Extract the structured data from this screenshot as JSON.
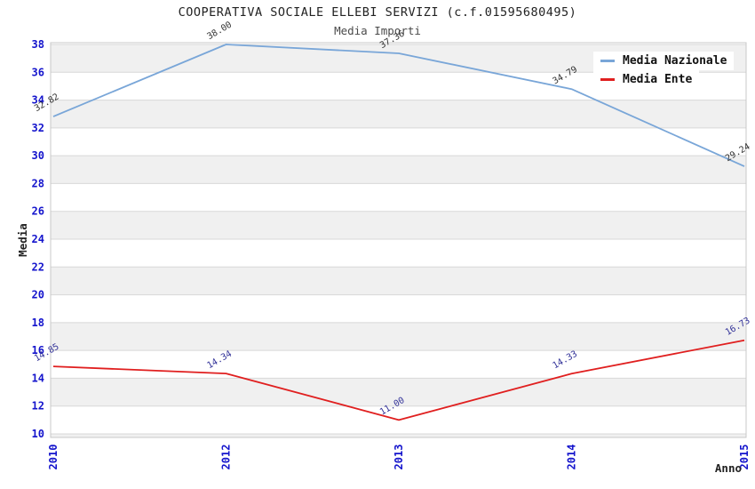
{
  "chart": {
    "title": "COOPERATIVA SOCIALE ELLEBI SERVIZI (c.f.01595680495)",
    "subtitle": "Media Importi",
    "x_axis_title": "Anno",
    "y_axis_title": "Media"
  },
  "legend": {
    "items": [
      {
        "label": "Media Nazionale",
        "color": "#79a6d8"
      },
      {
        "label": "Media Ente",
        "color": "#e01f1f"
      }
    ]
  },
  "chart_data": {
    "type": "line",
    "title": "COOPERATIVA SOCIALE ELLEBI SERVIZI (c.f.01595680495)",
    "subtitle": "Media Importi",
    "xlabel": "Anno",
    "ylabel": "Media",
    "categories": [
      "2010",
      "2012",
      "2013",
      "2014",
      "2015"
    ],
    "series": [
      {
        "name": "Media Nazionale",
        "color": "#79a6d8",
        "label_color": "#333333",
        "values": [
          32.82,
          38.0,
          37.36,
          34.79,
          29.24
        ]
      },
      {
        "name": "Media Ente",
        "color": "#e01f1f",
        "label_color": "#333399",
        "values": [
          14.85,
          14.34,
          11.0,
          14.33,
          16.73
        ]
      }
    ],
    "ylim": [
      10,
      38
    ],
    "ytick_step": 2,
    "grid": "horizontal-bands",
    "legend_position": "top-right"
  },
  "colors": {
    "tick_label_blue": "#1414cc",
    "band_gray": "#f0f0f0",
    "band_white": "#ffffff",
    "gridline": "#d8d8d8",
    "plot_border": "#c8c8c8",
    "background": "#ffffff"
  }
}
